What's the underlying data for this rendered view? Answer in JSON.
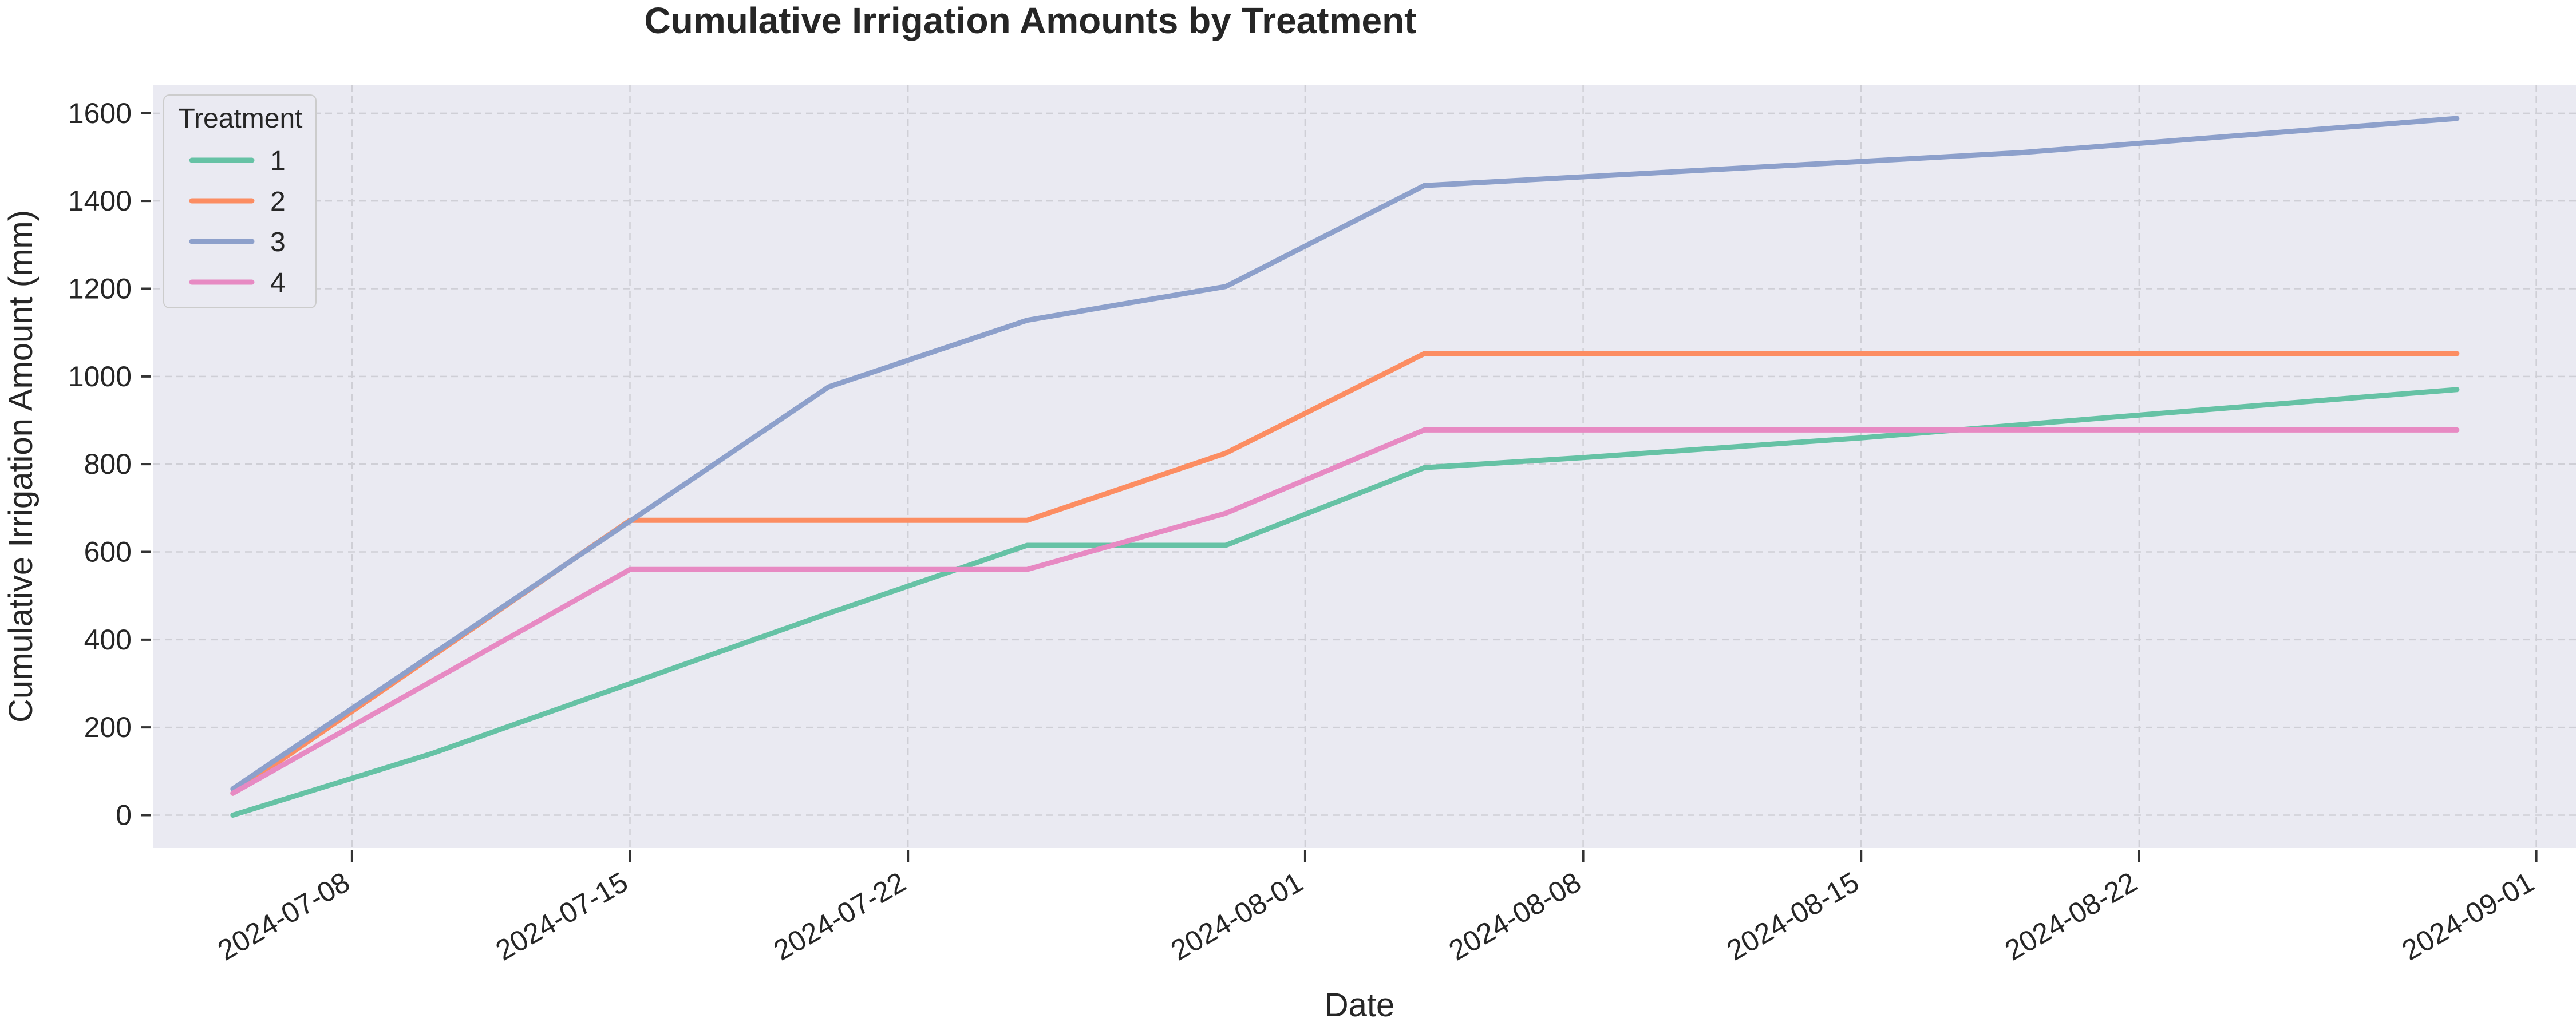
{
  "chart_data": {
    "type": "line",
    "title": "Cumulative Irrigation Amounts by Treatment",
    "xlabel": "Date",
    "ylabel": "Cumulative Irrigation Amount (mm)",
    "x_axis": {
      "type": "date",
      "range": [
        "2024-07-03",
        "2024-09-02"
      ],
      "ticks": [
        "2024-07-08",
        "2024-07-15",
        "2024-07-22",
        "2024-08-01",
        "2024-08-08",
        "2024-08-15",
        "2024-08-22",
        "2024-09-01"
      ]
    },
    "ylim": [
      -75,
      1665
    ],
    "yticks": [
      0,
      200,
      400,
      600,
      800,
      1000,
      1200,
      1400,
      1600
    ],
    "grid": true,
    "legend": {
      "title": "Treatment",
      "position": "top-left"
    },
    "series": [
      {
        "name": "1",
        "color": "#66c2a5",
        "points": [
          {
            "x": "2024-07-05",
            "y": 0
          },
          {
            "x": "2024-07-10",
            "y": 140
          },
          {
            "x": "2024-07-15",
            "y": 300
          },
          {
            "x": "2024-07-20",
            "y": 460
          },
          {
            "x": "2024-07-25",
            "y": 615
          },
          {
            "x": "2024-07-30",
            "y": 615
          },
          {
            "x": "2024-08-04",
            "y": 792
          },
          {
            "x": "2024-08-08",
            "y": 815
          },
          {
            "x": "2024-08-15",
            "y": 860
          },
          {
            "x": "2024-08-22",
            "y": 912
          },
          {
            "x": "2024-08-30",
            "y": 970
          }
        ]
      },
      {
        "name": "2",
        "color": "#fc8d62",
        "points": [
          {
            "x": "2024-07-05",
            "y": 50
          },
          {
            "x": "2024-07-15",
            "y": 672
          },
          {
            "x": "2024-07-25",
            "y": 672
          },
          {
            "x": "2024-07-30",
            "y": 825
          },
          {
            "x": "2024-08-04",
            "y": 1052
          },
          {
            "x": "2024-08-30",
            "y": 1052
          }
        ]
      },
      {
        "name": "3",
        "color": "#8da0cb",
        "points": [
          {
            "x": "2024-07-05",
            "y": 60
          },
          {
            "x": "2024-07-15",
            "y": 670
          },
          {
            "x": "2024-07-20",
            "y": 976
          },
          {
            "x": "2024-07-25",
            "y": 1128
          },
          {
            "x": "2024-07-30",
            "y": 1205
          },
          {
            "x": "2024-08-04",
            "y": 1435
          },
          {
            "x": "2024-08-19",
            "y": 1510
          },
          {
            "x": "2024-08-30",
            "y": 1588
          }
        ]
      },
      {
        "name": "4",
        "color": "#e78ac3",
        "points": [
          {
            "x": "2024-07-05",
            "y": 50
          },
          {
            "x": "2024-07-15",
            "y": 560
          },
          {
            "x": "2024-07-25",
            "y": 560
          },
          {
            "x": "2024-07-30",
            "y": 688
          },
          {
            "x": "2024-08-04",
            "y": 878
          },
          {
            "x": "2024-08-30",
            "y": 878
          }
        ]
      }
    ]
  }
}
